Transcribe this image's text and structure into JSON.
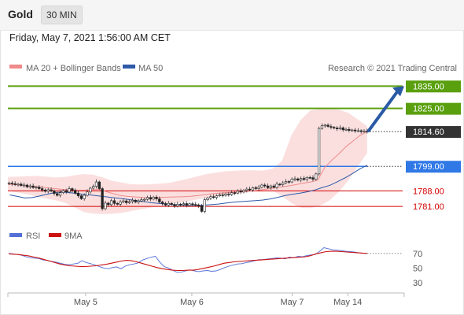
{
  "header": {
    "title": "Gold",
    "timeframe": "30 MIN",
    "datetime": "Friday, May 7, 2021 1:56:00 AM CET"
  },
  "chart_data": [
    {
      "type": "candlestick",
      "legend": [
        {
          "name": "MA 20 + Bollinger Bands",
          "color": "#f08a8a"
        },
        {
          "name": "MA 50",
          "color": "#2e5aa8"
        }
      ],
      "attribution": "Research © 2021 Trading Central",
      "ylim": [
        1774,
        1839
      ],
      "x_ticks": [
        {
          "label": "May 5",
          "t": 0.197
        },
        {
          "label": "May 6",
          "t": 0.466
        },
        {
          "label": "May 7",
          "t": 0.72
        },
        {
          "label": "May 14",
          "t": 0.861
        }
      ],
      "current_price": {
        "label": "1814.60",
        "value": 1814.6,
        "color": "#333333"
      },
      "levels": [
        {
          "label": "1835.00",
          "value": 1835,
          "kind": "resistance",
          "color": "#5aa00e"
        },
        {
          "label": "1825.00",
          "value": 1825,
          "kind": "resistance",
          "color": "#5aa00e"
        },
        {
          "label": "1799.00",
          "value": 1799,
          "kind": "pivot",
          "color": "#2f78e6"
        },
        {
          "label": "1788.00",
          "value": 1788,
          "kind": "support",
          "color": "#d40000"
        },
        {
          "label": "1781.00",
          "value": 1781,
          "kind": "support",
          "color": "#d40000"
        }
      ],
      "close": [
        1791.5,
        1791.2,
        1790.8,
        1791,
        1790.4,
        1790.6,
        1789.8,
        1790.2,
        1789.5,
        1789.7,
        1789,
        1788.4,
        1787.8,
        1788.5,
        1788,
        1786.8,
        1786,
        1787.2,
        1788.1,
        1787.5,
        1789,
        1788.2,
        1787,
        1785.8,
        1784.5,
        1786,
        1787.5,
        1789.2,
        1790,
        1792,
        1789,
        1780,
        1782.5,
        1781.8,
        1783.6,
        1782.4,
        1782,
        1783.1,
        1783.5,
        1782.7,
        1783.2,
        1783.8,
        1783,
        1783.5,
        1784,
        1784.2,
        1785,
        1784.3,
        1785.2,
        1784.4,
        1783,
        1782.3,
        1781.6,
        1782.4,
        1781.9,
        1781.2,
        1782,
        1781.8,
        1782.3,
        1781.5,
        1782.2,
        1781.9,
        1781.7,
        1781.3,
        1778.8,
        1784,
        1784.8,
        1785.4,
        1785,
        1785.8,
        1786.2,
        1786,
        1786.6,
        1786.3,
        1787.2,
        1787,
        1787.9,
        1787.5,
        1788.2,
        1788.8,
        1788.4,
        1789.4,
        1789,
        1789.6,
        1790.6,
        1790.2,
        1789.4,
        1790.2,
        1789.6,
        1791,
        1790.8,
        1791.6,
        1792.2,
        1792,
        1793.2,
        1793.4,
        1792.8,
        1793.6,
        1793.1,
        1794,
        1793.9,
        1793.2,
        1795.6,
        1816,
        1817.2,
        1817.5,
        1816.9,
        1816.5,
        1816.2,
        1815.8,
        1816.3,
        1815.4,
        1815.6,
        1815.1,
        1815.3,
        1814.9,
        1815,
        1814.6,
        1814.8,
        1814.6
      ],
      "ma20": [
        1791,
        1790.8,
        1790.5,
        1790.2,
        1789.9,
        1789.6,
        1789.2,
        1788.9,
        1788.6,
        1788.4,
        1788.3,
        1788.3,
        1788.5,
        1788.7,
        1787.6,
        1786.7,
        1785.9,
        1785.5,
        1785.3,
        1785.1,
        1785,
        1785,
        1785.1,
        1785.2,
        1785.3,
        1785.4,
        1785.6,
        1785.9,
        1786.3,
        1786.7,
        1787,
        1787.2,
        1787.4,
        1787.5,
        1787.8,
        1788.1,
        1788.5,
        1788.9,
        1789.4,
        1789.8,
        1790.3,
        1790.9,
        1791.5,
        1792,
        1792.8,
        1798.6,
        1801.8,
        1804.7,
        1807.8,
        1810.4,
        1812.9,
        1814.6
      ],
      "bb_upper": [
        1794.2,
        1794.4,
        1794.6,
        1794.7,
        1794.4,
        1794,
        1794.2,
        1795,
        1795.5,
        1795.3,
        1794.1,
        1792.5,
        1791.8,
        1791,
        1790.9,
        1791,
        1791.2,
        1791.6,
        1792.4,
        1793.4,
        1794.5,
        1795.5,
        1796.2,
        1796.8,
        1797,
        1797.2,
        1797.2,
        1797.1,
        1798,
        1801.5,
        1813,
        1820,
        1824.1,
        1824.8,
        1825,
        1824.4,
        1823,
        1820.1,
        1817
      ],
      "bb_lower": [
        1788.1,
        1787.3,
        1786.5,
        1785.5,
        1784.6,
        1783.8,
        1782.7,
        1780.7,
        1778.6,
        1777.8,
        1777.6,
        1777.7,
        1778.1,
        1778.9,
        1779.7,
        1780.4,
        1781.2,
        1781.9,
        1782.6,
        1783.3,
        1784.1,
        1784.8,
        1785.5,
        1786.2,
        1786.7,
        1787.2,
        1787.5,
        1787.8,
        1788.1,
        1785.7,
        1782.5,
        1780.4,
        1780.2,
        1781.3,
        1783.6,
        1787.5,
        1792.6,
        1798.9,
        1804.9
      ],
      "ma50": [
        1786.2,
        1785.5,
        1784.8,
        1785,
        1785.7,
        1786.5,
        1787.2,
        1787.5,
        1787.2,
        1786.8,
        1786.4,
        1786.1,
        1785.7,
        1785.3,
        1784.9,
        1784.6,
        1784.1,
        1783.6,
        1783.2,
        1782.7,
        1782.4,
        1782.1,
        1781.8,
        1781.6,
        1781.5,
        1781.5,
        1781.6,
        1781.8,
        1782.1,
        1782.5,
        1782.9,
        1783.2,
        1783.4,
        1783.6,
        1783.9,
        1784.4,
        1785.1,
        1785.9,
        1786.5,
        1787,
        1787.6,
        1788.4,
        1789.5,
        1790.5,
        1792.1,
        1793.8,
        1795.7,
        1797.8,
        1799.5
      ],
      "projection": {
        "from": 1815,
        "to": 1835
      }
    },
    {
      "type": "line",
      "title": "RSI",
      "legend": [
        {
          "name": "RSI",
          "color": "#5470d6"
        },
        {
          "name": "9MA",
          "color": "#cc1111"
        }
      ],
      "ylim": [
        20,
        85
      ],
      "y_ticks": [
        70,
        50,
        30
      ],
      "series": [
        {
          "name": "RSI",
          "values": [
            70,
            69.5,
            68.5,
            67.5,
            65.5,
            64,
            63.5,
            63,
            61,
            60.5,
            59,
            58,
            56.5,
            55,
            54.5,
            55.5,
            56.5,
            60,
            57.5,
            56,
            54,
            52,
            50,
            49,
            50.5,
            51.5,
            49,
            52.5,
            54.5,
            55.5,
            57,
            61,
            63,
            65,
            66,
            58,
            52,
            50,
            47,
            44,
            44.5,
            46,
            47.5,
            46,
            45,
            46,
            46.5,
            45.5,
            46,
            48,
            50.5,
            52.5,
            54,
            55.5,
            56,
            57.5,
            58.5,
            60,
            61.5,
            61.5,
            62.5,
            63,
            64,
            63.5,
            62.5,
            65,
            64,
            66,
            65.5,
            67,
            68,
            68.5,
            73,
            78,
            76.5,
            75,
            74.5,
            74,
            73,
            72.5,
            72,
            71,
            70.5,
            70
          ]
        },
        {
          "name": "9MA",
          "values": [
            69.5,
            69,
            68.5,
            67.5,
            66.5,
            65,
            63.5,
            61.5,
            59.5,
            57.5,
            55.5,
            54,
            53,
            52.5,
            52,
            52,
            52.5,
            53,
            54,
            55,
            56.5,
            58,
            59.5,
            60.5,
            60,
            58.5,
            56.5,
            54.5,
            52.5,
            50.5,
            49,
            48,
            47,
            46.5,
            46.5,
            47,
            47,
            48,
            49.5,
            51,
            52.5,
            54.5,
            56.5,
            57.5,
            58.5,
            59,
            59.5,
            60,
            60.5,
            61,
            61.5,
            62,
            62.5,
            63,
            63.5,
            64,
            64.5,
            65,
            65.5,
            67,
            69.5,
            71,
            72.5,
            73,
            73,
            72.5,
            72,
            71.5,
            71,
            70.5,
            70
          ]
        }
      ]
    }
  ]
}
